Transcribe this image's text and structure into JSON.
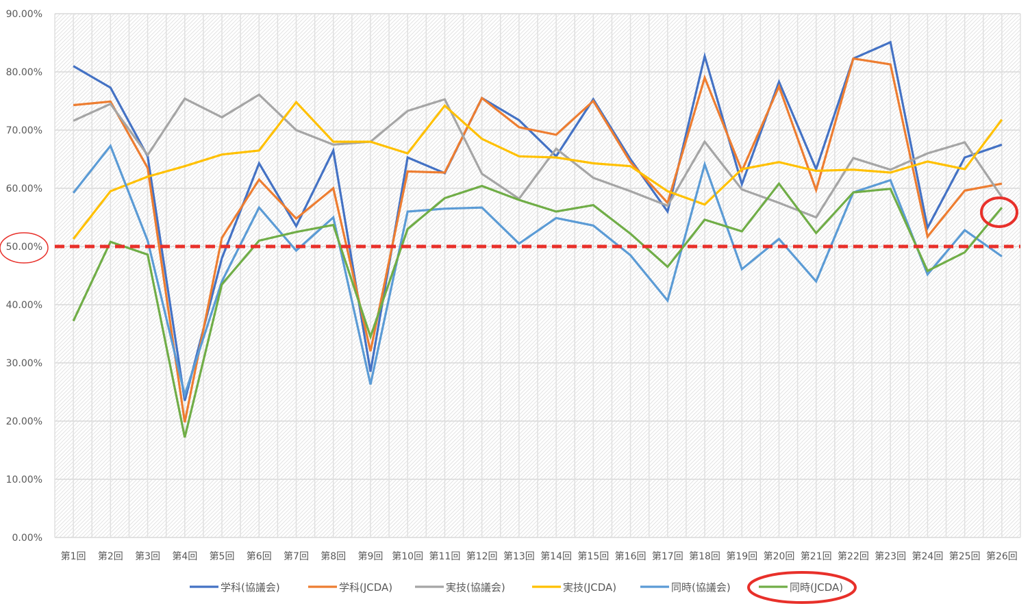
{
  "chart_data": {
    "type": "line",
    "title": "",
    "xlabel": "",
    "ylabel": "",
    "ylim": [
      0,
      90
    ],
    "y_tick_step": 10,
    "y_tick_labels": [
      "0.00%",
      "10.00%",
      "20.00%",
      "30.00%",
      "40.00%",
      "50.00%",
      "60.00%",
      "70.00%",
      "80.00%",
      "90.00%"
    ],
    "grid": true,
    "legend_position": "bottom",
    "categories": [
      "第1回",
      "第2回",
      "第3回",
      "第4回",
      "第5回",
      "第6回",
      "第7回",
      "第8回",
      "第9回",
      "第10回",
      "第11回",
      "第12回",
      "第13回",
      "第14回",
      "第15回",
      "第16回",
      "第17回",
      "第18回",
      "第19回",
      "第20回",
      "第21回",
      "第22回",
      "第23回",
      "第24回",
      "第25回",
      "第26回"
    ],
    "series": [
      {
        "name": "学科(協議会)",
        "color": "#4472c4",
        "values": [
          81.0,
          77.3,
          65.5,
          23.5,
          48.0,
          64.3,
          53.5,
          66.5,
          28.5,
          65.3,
          62.6,
          75.5,
          71.7,
          65.5,
          75.3,
          65.0,
          56.0,
          82.7,
          60.7,
          78.3,
          63.3,
          82.3,
          85.1,
          53.2,
          65.3,
          67.5
        ]
      },
      {
        "name": "学科(JCDA)",
        "color": "#ed7d31",
        "values": [
          74.3,
          74.9,
          63.5,
          19.8,
          51.5,
          61.5,
          54.8,
          60.0,
          32.0,
          62.9,
          62.7,
          75.5,
          70.5,
          69.2,
          75.0,
          64.5,
          57.5,
          79.0,
          63.0,
          77.5,
          59.7,
          82.3,
          81.3,
          51.7,
          59.6,
          60.8
        ]
      },
      {
        "name": "実技(協議会)",
        "color": "#a5a5a5",
        "values": [
          71.6,
          74.5,
          65.7,
          75.4,
          72.2,
          76.1,
          70.0,
          67.5,
          68.0,
          73.3,
          75.3,
          62.5,
          58.2,
          66.8,
          61.8,
          59.5,
          57.0,
          68.0,
          59.8,
          57.5,
          55.0,
          65.2,
          63.2,
          66.0,
          67.9,
          58.5
        ]
      },
      {
        "name": "実技(JCDA)",
        "color": "#ffc000",
        "values": [
          51.3,
          59.5,
          62.0,
          63.8,
          65.8,
          66.5,
          74.8,
          68.0,
          68.0,
          66.0,
          74.2,
          68.5,
          65.5,
          65.3,
          64.3,
          63.8,
          59.5,
          57.2,
          63.3,
          64.5,
          63.0,
          63.2,
          62.7,
          64.6,
          63.3,
          71.8
        ]
      },
      {
        "name": "同時(協議会)",
        "color": "#5b9bd5",
        "values": [
          59.2,
          67.3,
          51.0,
          24.5,
          44.0,
          56.7,
          49.3,
          55.0,
          26.3,
          56.0,
          56.5,
          56.7,
          50.5,
          54.9,
          53.6,
          48.5,
          40.7,
          64.1,
          46.1,
          51.3,
          44.0,
          59.3,
          61.4,
          45.2,
          52.8,
          48.3
        ]
      },
      {
        "name": "同時(JCDA)",
        "color": "#70ad47",
        "values": [
          37.2,
          50.8,
          48.6,
          17.2,
          43.5,
          51.0,
          52.5,
          53.7,
          34.5,
          53.0,
          58.3,
          60.4,
          58.0,
          56.0,
          57.1,
          52.2,
          46.5,
          54.6,
          52.6,
          60.8,
          52.3,
          59.3,
          59.9,
          45.8,
          49.0,
          56.7
        ]
      }
    ],
    "reference_line": {
      "value": 50,
      "color": "#e8302a",
      "style": "dashed"
    },
    "annotations": [
      {
        "type": "circle",
        "target": "y-tick 50.00%",
        "color": "#e8302a"
      },
      {
        "type": "circle",
        "target": "同時(JCDA) 第26回",
        "color": "#e8302a"
      },
      {
        "type": "circle",
        "target": "legend 同時(JCDA)",
        "color": "#e8302a"
      }
    ]
  }
}
